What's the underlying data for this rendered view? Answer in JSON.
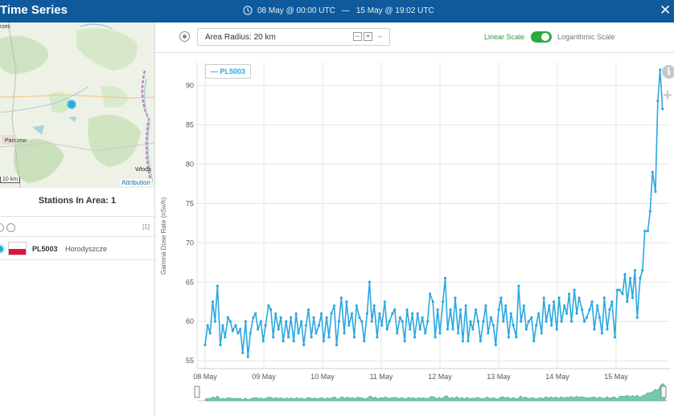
{
  "window": {
    "title": "Time Series",
    "date_from": "08 May @ 00:00 UTC",
    "separator": "—",
    "date_to": "15 May @ 19:02 UTC",
    "close_icon": "close-icon"
  },
  "map": {
    "labels": [
      "rzec",
      "Parczew",
      "Włoda"
    ],
    "scale": "10 km",
    "attribution": "Attribution",
    "station_marker_color": "#2aa8e0"
  },
  "stations": {
    "title": "Stations In Area: 1",
    "count_badge": "[1]",
    "items": [
      {
        "code": "PL5003",
        "name": "Horodyszcze",
        "country": "PL"
      }
    ]
  },
  "toolbar": {
    "area_radius_label": "Area Radius: 20 km",
    "minus": "−",
    "plus": "+",
    "linear_label": "Linear Scale",
    "log_label": "Logarithmic Scale",
    "toggle_state": "linear"
  },
  "chart_data": {
    "type": "line",
    "title": "",
    "ylabel": "Gamma Dose Rate (nSv/h)",
    "xlabel": "",
    "ylim": [
      54,
      93
    ],
    "yticks": [
      55,
      60,
      65,
      70,
      75,
      80,
      85,
      90
    ],
    "x_ticks": [
      "08 May",
      "09 May",
      "10 May",
      "11 May",
      "12 May",
      "13 May",
      "14 May",
      "15 May"
    ],
    "grid": true,
    "legend_position": "top-left",
    "series": [
      {
        "name": "PL5003",
        "color": "#2aa8e0",
        "x_day": [
          0.0,
          0.043,
          0.086,
          0.13,
          0.17,
          0.21,
          0.26,
          0.3,
          0.34,
          0.39,
          0.43,
          0.47,
          0.52,
          0.56,
          0.6,
          0.64,
          0.69,
          0.73,
          0.77,
          0.82,
          0.86,
          0.9,
          0.95,
          0.99,
          1.03,
          1.08,
          1.12,
          1.16,
          1.2,
          1.25,
          1.29,
          1.33,
          1.38,
          1.42,
          1.46,
          1.51,
          1.55,
          1.59,
          1.64,
          1.68,
          1.72,
          1.76,
          1.81,
          1.85,
          1.89,
          1.94,
          1.98,
          2.02,
          2.07,
          2.11,
          2.15,
          2.2,
          2.24,
          2.28,
          2.32,
          2.37,
          2.41,
          2.45,
          2.5,
          2.54,
          2.58,
          2.63,
          2.67,
          2.71,
          2.76,
          2.8,
          2.84,
          2.88,
          2.93,
          2.97,
          3.01,
          3.06,
          3.1,
          3.14,
          3.19,
          3.23,
          3.27,
          3.32,
          3.36,
          3.4,
          3.44,
          3.49,
          3.53,
          3.57,
          3.62,
          3.66,
          3.7,
          3.75,
          3.79,
          3.83,
          3.88,
          3.92,
          3.96,
          4.0,
          4.05,
          4.09,
          4.13,
          4.18,
          4.22,
          4.26,
          4.31,
          4.35,
          4.39,
          4.44,
          4.48,
          4.52,
          4.56,
          4.61,
          4.65,
          4.69,
          4.74,
          4.78,
          4.82,
          4.87,
          4.91,
          4.95,
          5.0,
          5.04,
          5.08,
          5.12,
          5.17,
          5.21,
          5.25,
          5.3,
          5.34,
          5.38,
          5.43,
          5.47,
          5.51,
          5.56,
          5.6,
          5.64,
          5.68,
          5.73,
          5.77,
          5.81,
          5.86,
          5.9,
          5.94,
          5.99,
          6.03,
          6.07,
          6.12,
          6.16,
          6.2,
          6.24,
          6.29,
          6.33,
          6.37,
          6.42,
          6.46,
          6.5,
          6.55,
          6.59,
          6.63,
          6.68,
          6.72,
          6.76,
          6.8,
          6.85,
          6.89,
          6.93,
          6.98,
          7.02,
          7.06,
          7.11,
          7.15,
          7.19,
          7.24,
          7.28,
          7.32,
          7.36,
          7.41,
          7.45,
          7.49,
          7.54,
          7.58,
          7.62,
          7.67,
          7.71,
          7.75,
          7.79
        ],
        "y": [
          57.0,
          59.5,
          58.5,
          62.5,
          60.0,
          64.5,
          57.0,
          59.5,
          58.0,
          60.5,
          60.0,
          58.8,
          59.5,
          58.5,
          59.0,
          56.0,
          60.0,
          55.5,
          58.5,
          60.5,
          61.0,
          59.0,
          60.0,
          57.5,
          59.5,
          62.0,
          61.5,
          58.0,
          61.0,
          59.0,
          60.5,
          57.5,
          60.0,
          58.0,
          60.5,
          57.5,
          61.0,
          58.5,
          60.0,
          57.0,
          59.5,
          61.5,
          58.0,
          60.5,
          58.5,
          59.5,
          61.0,
          57.5,
          60.5,
          58.0,
          61.0,
          62.0,
          57.0,
          60.0,
          63.0,
          58.5,
          62.5,
          59.5,
          61.0,
          58.0,
          62.0,
          60.5,
          60.0,
          57.5,
          61.0,
          65.0,
          60.0,
          62.0,
          58.0,
          61.0,
          59.5,
          62.5,
          59.0,
          60.0,
          61.0,
          61.5,
          58.5,
          60.5,
          60.0,
          57.5,
          61.5,
          59.0,
          61.0,
          58.0,
          61.0,
          59.0,
          60.5,
          58.5,
          60.0,
          63.5,
          62.5,
          58.0,
          61.5,
          58.5,
          62.5,
          65.5,
          59.0,
          61.5,
          59.0,
          63.0,
          58.5,
          61.5,
          57.5,
          62.0,
          57.5,
          60.0,
          59.0,
          61.5,
          60.0,
          57.5,
          60.0,
          62.0,
          58.5,
          60.5,
          59.5,
          57.0,
          61.5,
          63.0,
          60.0,
          62.0,
          58.0,
          61.0,
          59.5,
          58.0,
          64.5,
          60.0,
          62.0,
          59.0,
          60.0,
          60.5,
          57.5,
          59.5,
          61.0,
          58.5,
          63.0,
          60.0,
          62.0,
          59.5,
          62.5,
          59.0,
          63.0,
          60.0,
          62.0,
          61.0,
          63.5,
          60.0,
          64.0,
          61.0,
          63.0,
          61.5,
          60.0,
          60.5,
          61.5,
          62.5,
          59.0,
          62.0,
          60.5,
          58.5,
          63.0,
          59.0,
          61.5,
          62.5,
          58.0,
          64.0,
          64.0,
          63.5,
          66.0,
          62.5,
          65.5,
          63.0,
          66.5,
          60.5,
          65.5,
          66.5,
          71.5,
          71.5,
          74.0,
          79.0,
          76.5,
          88.0,
          92.0,
          87.0
        ]
      }
    ]
  }
}
